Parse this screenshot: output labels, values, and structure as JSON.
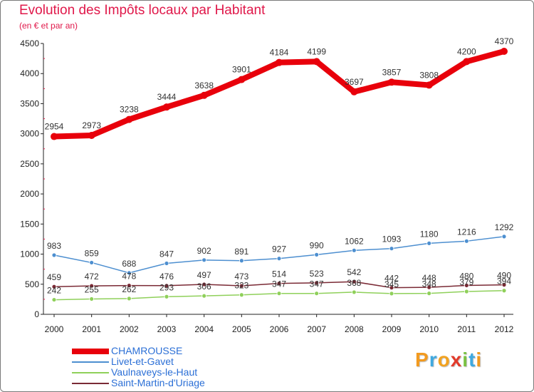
{
  "title": "Evolution des Impôts locaux par Habitant",
  "subtitle": "(en € et par an)",
  "brand": {
    "letters": [
      "P",
      "r",
      "o",
      "x",
      "i",
      "t",
      "i"
    ],
    "colors": [
      "#f29a1f",
      "#3fa9e0",
      "#f2a21f",
      "#e23a2a",
      "#7ac142",
      "#3fa9e0",
      "#f29a1f"
    ]
  },
  "chart_data": {
    "type": "line",
    "title": "Evolution des Impôts locaux par Habitant",
    "subtitle": "(en € et par an)",
    "xlabel": "",
    "ylabel": "",
    "x": [
      "2000",
      "2001",
      "2002",
      "2003",
      "2004",
      "2005",
      "2006",
      "2007",
      "2008",
      "2009",
      "2010",
      "2011",
      "2012"
    ],
    "ylim": [
      0,
      4500
    ],
    "yticks": [
      "0",
      "500",
      "1000",
      "1500",
      "2000",
      "2500",
      "3000",
      "3500",
      "4000",
      "4500"
    ],
    "grid": false,
    "legend_position": "bottom-left",
    "series": [
      {
        "name": "CHAMROUSSE",
        "color": "#e8000b",
        "values": [
          2954,
          2973,
          3238,
          3444,
          3638,
          3901,
          4184,
          4199,
          3697,
          3857,
          3808,
          4200,
          4370
        ],
        "labels": [
          "2954",
          "2973",
          "3238",
          "3444",
          "3638",
          "3901",
          "4184",
          "4199",
          "3697",
          "3857",
          "3808",
          "4200",
          "4370"
        ]
      },
      {
        "name": "Livet-et-Gavet",
        "color": "#4d8fd0",
        "values": [
          983,
          859,
          688,
          847,
          902,
          891,
          927,
          990,
          1062,
          1093,
          1180,
          1216,
          1292
        ],
        "labels": [
          "983",
          "859",
          "688",
          "847",
          "902",
          "891",
          "927",
          "990",
          "1062",
          "1093",
          "1180",
          "1216",
          "1292"
        ]
      },
      {
        "name": "Vaulnaveys-le-Haut",
        "color": "#8fd05a",
        "values": [
          242,
          255,
          262,
          293,
          306,
          323,
          347,
          347,
          368,
          345,
          348,
          379,
          394
        ],
        "labels": [
          "242",
          "255",
          "262",
          "293",
          "306",
          "323",
          "347",
          "347",
          "368",
          "345",
          "348",
          "379",
          "394"
        ]
      },
      {
        "name": "Saint-Martin-d'Uriage",
        "color": "#7a2a35",
        "values": [
          459,
          472,
          478,
          476,
          497,
          473,
          514,
          523,
          542,
          442,
          448,
          480,
          490
        ],
        "labels": [
          "459",
          "472",
          "478",
          "476",
          "497",
          "473",
          "514",
          "523",
          "542",
          "442",
          "448",
          "480",
          "490"
        ]
      }
    ]
  }
}
